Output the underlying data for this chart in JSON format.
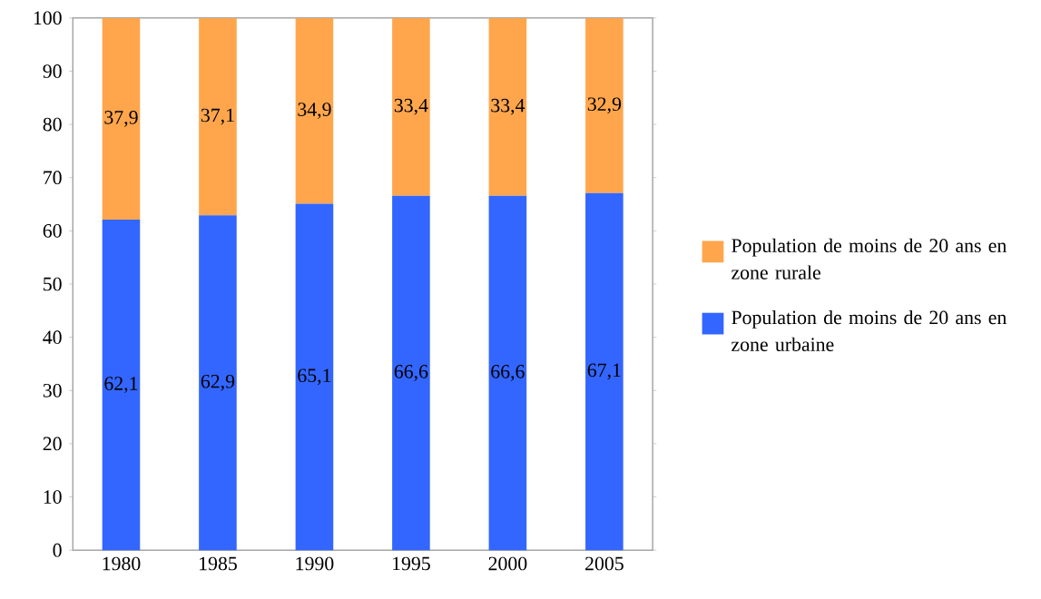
{
  "chart_data": {
    "type": "bar",
    "stacked": true,
    "categories": [
      "1980",
      "1985",
      "1990",
      "1995",
      "2000",
      "2005"
    ],
    "series": [
      {
        "name": "Population de moins de 20 ans en zone urbaine",
        "color": "#3366ff",
        "values": [
          62.1,
          62.9,
          65.1,
          66.6,
          66.6,
          67.1
        ],
        "value_labels": [
          "62,1",
          "62,9",
          "65,1",
          "66,6",
          "66,6",
          "67,1"
        ]
      },
      {
        "name": "Population de moins de 20 ans en zone rurale",
        "color": "#ffa64d",
        "values": [
          37.9,
          37.1,
          34.9,
          33.4,
          33.4,
          32.9
        ],
        "value_labels": [
          "37,9",
          "37,1",
          "34,9",
          "33,4",
          "33,4",
          "32,9"
        ]
      }
    ],
    "ylim": [
      0,
      100
    ],
    "yticks": [
      0,
      10,
      20,
      30,
      40,
      50,
      60,
      70,
      80,
      90,
      100
    ],
    "legend": "right",
    "grid": false
  }
}
